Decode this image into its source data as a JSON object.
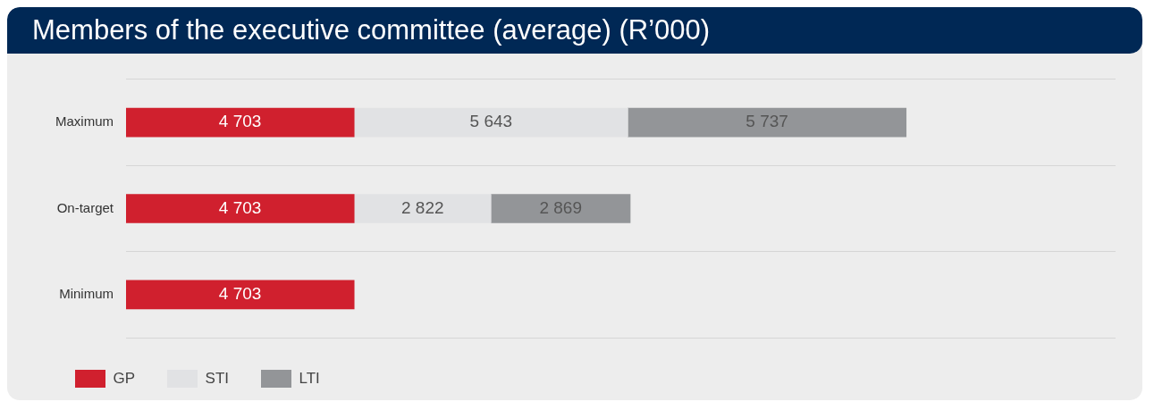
{
  "chart_data": {
    "type": "bar",
    "title": "Members of the executive committee (average) (R’000)",
    "orientation": "horizontal",
    "stacked": true,
    "categories": [
      "Maximum",
      "On-target",
      "Minimum"
    ],
    "series": [
      {
        "name": "GP",
        "color": "#d0202e",
        "values": [
          4703,
          4703,
          4703
        ],
        "value_labels": [
          "4 703",
          "4 703",
          "4 703"
        ]
      },
      {
        "name": "STI",
        "color": "#e1e2e4",
        "values": [
          5643,
          2822,
          null
        ],
        "value_labels": [
          "5 643",
          "2 822",
          null
        ]
      },
      {
        "name": "LTI",
        "color": "#939598",
        "values": [
          5737,
          2869,
          null
        ],
        "value_labels": [
          "5 737",
          "2 869",
          null
        ]
      }
    ],
    "xlim": [
      0,
      20400
    ],
    "tick_labels": "y",
    "grid": "y",
    "legend": "bottom left"
  }
}
